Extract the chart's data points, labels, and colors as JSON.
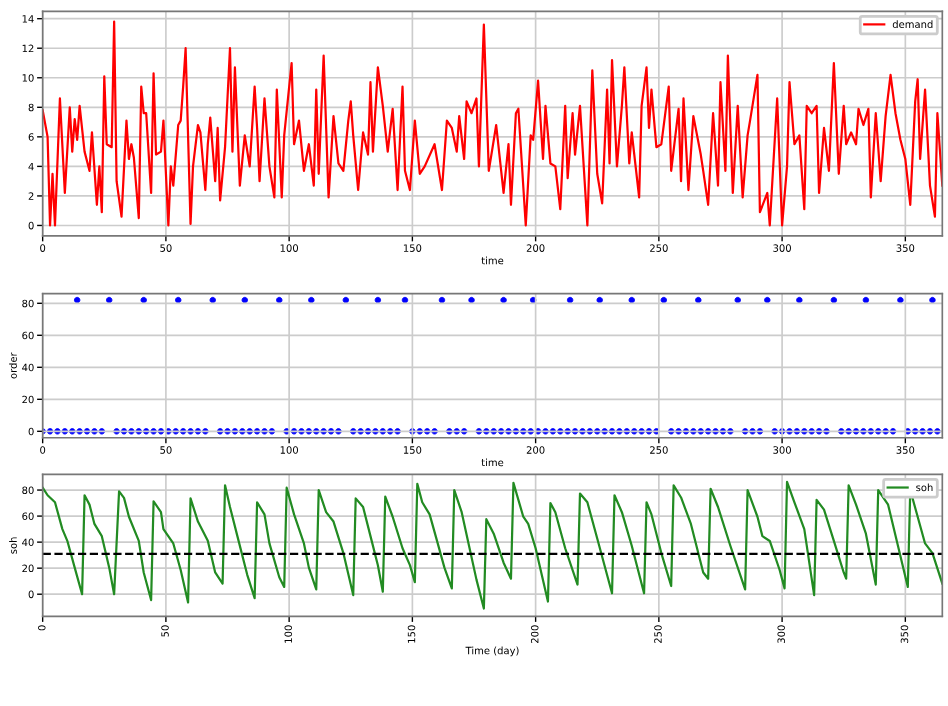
{
  "chart_data": [
    {
      "type": "line",
      "xlabel": "time",
      "xlim": [
        0,
        365
      ],
      "xticks": [
        0,
        50,
        100,
        150,
        200,
        250,
        300,
        350
      ],
      "ylim": [
        -0.7,
        14.5
      ],
      "yticks": [
        0,
        2,
        4,
        6,
        8,
        10,
        12,
        14
      ],
      "grid": true,
      "legend": "top right",
      "series": [
        {
          "name": "demand",
          "color": "#ff0000",
          "x": [
            0,
            2,
            3,
            4,
            5,
            7,
            9,
            11,
            12,
            13,
            14,
            15,
            17,
            19,
            20,
            22,
            23,
            24,
            25,
            26,
            28,
            29,
            30,
            32,
            34,
            35,
            36,
            37,
            39,
            40,
            41,
            42,
            44,
            45,
            46,
            48,
            49,
            51,
            52,
            53,
            55,
            56,
            57,
            58,
            60,
            61,
            63,
            64,
            66,
            67,
            68,
            70,
            71,
            72,
            74,
            76,
            77,
            78,
            80,
            82,
            84,
            86,
            87,
            88,
            90,
            92,
            94,
            95,
            97,
            98,
            101,
            102,
            104,
            106,
            108,
            110,
            111,
            112,
            114,
            116,
            118,
            120,
            122,
            124,
            125,
            126,
            128,
            130,
            132,
            133,
            134,
            136,
            138,
            140,
            142,
            144,
            146,
            147,
            149,
            151,
            153,
            155,
            159,
            162,
            164,
            166,
            168,
            169,
            171,
            172,
            174,
            176,
            177,
            179,
            181,
            184,
            187,
            189,
            190,
            192,
            193,
            196,
            198,
            199,
            201,
            203,
            204,
            206,
            208,
            210,
            212,
            213,
            215,
            216,
            218,
            221,
            223,
            225,
            227,
            229,
            230,
            231,
            233,
            235,
            236,
            238,
            239,
            242,
            243,
            245,
            246,
            247,
            249,
            251,
            254,
            255,
            258,
            259,
            260,
            262,
            264,
            267,
            268,
            270,
            272,
            274,
            275,
            277,
            278,
            280,
            282,
            284,
            286,
            287,
            290,
            291,
            294,
            295,
            298,
            300,
            302,
            303,
            305,
            307,
            309,
            310,
            312,
            314,
            315,
            317,
            319,
            321,
            323,
            325,
            326,
            328,
            330,
            331,
            333,
            335,
            336,
            338,
            340,
            342,
            344,
            346,
            348,
            350,
            352,
            354,
            355,
            356,
            358,
            360,
            362,
            363,
            365
          ],
          "values": [
            7.8,
            6,
            0,
            3.5,
            0,
            8.6,
            2.2,
            8,
            5,
            7.2,
            5.8,
            8.1,
            5,
            3.7,
            6.3,
            1.4,
            4,
            0.9,
            10.1,
            5.5,
            5.3,
            13.8,
            3,
            0.6,
            7.1,
            4.5,
            5.5,
            4.6,
            0.5,
            9.4,
            7.6,
            7.6,
            2.2,
            10.3,
            4.8,
            5,
            7.1,
            0,
            4,
            2.7,
            6.8,
            7.1,
            9.4,
            12,
            0.1,
            4,
            6.8,
            6.3,
            2.4,
            5.5,
            7.3,
            3,
            6.6,
            1.7,
            5.3,
            12,
            5,
            10.7,
            2.7,
            6.1,
            4,
            9.4,
            6.6,
            3,
            8.6,
            4,
            1.9,
            9.2,
            1.9,
            6.1,
            11,
            5.5,
            7.1,
            3.7,
            5.5,
            2.7,
            9.2,
            3.5,
            11.5,
            1.9,
            7.4,
            4.2,
            3.7,
            7.1,
            8.4,
            6.1,
            2.4,
            6.3,
            4.8,
            9.7,
            5,
            10.7,
            8.1,
            5,
            7.9,
            2.4,
            9.4,
            3.7,
            2.4,
            7.1,
            3.5,
            4,
            5.5,
            2.4,
            7.1,
            6.6,
            5,
            7.4,
            4.5,
            8.4,
            7.6,
            8.6,
            4,
            13.6,
            3.7,
            6.8,
            2.2,
            5.5,
            1.4,
            7.6,
            7.9,
            0,
            6.1,
            5.8,
            9.8,
            4.5,
            8.1,
            4.2,
            4,
            1.1,
            8.1,
            3.2,
            7.6,
            4.8,
            8.1,
            0,
            10.5,
            3.5,
            1.5,
            9.2,
            4.2,
            11.2,
            4,
            8.1,
            10.7,
            4.2,
            6.3,
            1.9,
            8.1,
            10.7,
            6.6,
            9.2,
            5.3,
            5.5,
            9.4,
            3.7,
            7.9,
            3,
            8.6,
            2.4,
            7.4,
            4.8,
            3.7,
            1.4,
            7.6,
            2.7,
            9.7,
            3.7,
            11.5,
            2.2,
            8.1,
            1.9,
            6.1,
            7.1,
            10.2,
            0.9,
            2.2,
            0,
            8.6,
            0,
            4,
            9.7,
            5.5,
            6.1,
            1.1,
            8.1,
            7.6,
            8.1,
            2.2,
            6.6,
            3.7,
            11,
            3.5,
            8.1,
            5.5,
            6.3,
            5.5,
            7.9,
            6.8,
            7.9,
            1.9,
            7.6,
            3,
            7.4,
            10.2,
            7.6,
            5.8,
            4.5,
            1.4,
            8.4,
            9.9,
            4.5,
            9.2,
            2.7,
            0.6,
            7.6,
            2.7
          ]
        }
      ]
    },
    {
      "type": "scatter",
      "xlabel": "time",
      "ylabel": "order",
      "xlim": [
        0,
        365
      ],
      "xticks": [
        0,
        50,
        100,
        150,
        200,
        250,
        300,
        350
      ],
      "ylim": [
        -4,
        86
      ],
      "yticks": [
        0,
        20,
        40,
        60,
        80
      ],
      "grid": true,
      "marker": "circle",
      "series": [
        {
          "color": "#0000ff",
          "x": [
            0,
            3,
            6,
            9,
            12,
            14,
            15,
            18,
            21,
            24,
            27,
            30,
            33,
            36,
            39,
            41,
            42,
            45,
            48,
            51,
            54,
            55,
            57,
            60,
            63,
            66,
            69,
            72,
            75,
            78,
            81,
            82,
            84,
            87,
            90,
            93,
            96,
            99,
            102,
            105,
            108,
            109,
            111,
            114,
            117,
            120,
            123,
            126,
            129,
            132,
            135,
            136,
            138,
            141,
            144,
            147,
            150,
            153,
            156,
            159,
            162,
            165,
            168,
            171,
            174,
            177,
            180,
            183,
            186,
            187,
            189,
            192,
            195,
            198,
            199,
            201,
            204,
            207,
            210,
            213,
            214,
            216,
            219,
            222,
            225,
            226,
            228,
            231,
            234,
            237,
            239,
            240,
            243,
            246,
            249,
            252,
            255,
            258,
            261,
            264,
            266,
            267,
            270,
            273,
            276,
            279,
            282,
            285,
            288,
            291,
            294,
            297,
            300,
            303,
            306,
            307,
            309,
            312,
            315,
            318,
            321,
            324,
            327,
            330,
            333,
            334,
            336,
            339,
            342,
            345,
            348,
            351,
            354,
            357,
            360,
            361,
            363
          ],
          "values": [
            0,
            0,
            0,
            0,
            0,
            82,
            0,
            0,
            0,
            0,
            82,
            0,
            0,
            0,
            0,
            82,
            0,
            0,
            0,
            0,
            0,
            82,
            0,
            0,
            0,
            0,
            82,
            0,
            0,
            0,
            0,
            82,
            0,
            0,
            0,
            0,
            82,
            0,
            0,
            0,
            0,
            82,
            0,
            0,
            0,
            0,
            82,
            0,
            0,
            0,
            0,
            82,
            0,
            0,
            0,
            82,
            0,
            0,
            0,
            0,
            82,
            0,
            0,
            0,
            82,
            0,
            0,
            0,
            0,
            82,
            0,
            0,
            0,
            0,
            82,
            0,
            0,
            0,
            0,
            0,
            82,
            0,
            0,
            0,
            0,
            82,
            0,
            0,
            0,
            0,
            82,
            0,
            0,
            0,
            0,
            82,
            0,
            0,
            0,
            0,
            82,
            0,
            0,
            0,
            0,
            0,
            82,
            0,
            0,
            0,
            82,
            0,
            0,
            0,
            0,
            82,
            0,
            0,
            0,
            0,
            82,
            0,
            0,
            0,
            0,
            82,
            0,
            0,
            0,
            0,
            82,
            0,
            0,
            0,
            0,
            82,
            0
          ]
        }
      ]
    },
    {
      "type": "line",
      "xlabel": "Time (day)",
      "ylabel": "soh",
      "xlim": [
        0,
        365
      ],
      "xticks": [
        0,
        50,
        100,
        150,
        200,
        250,
        300,
        350
      ],
      "ylim": [
        -17,
        92
      ],
      "yticks": [
        0,
        20,
        40,
        60,
        80
      ],
      "grid": true,
      "legend": "top right",
      "ref_lines": [
        {
          "axis": "y",
          "value": 31,
          "color": "#000000",
          "line_style": "dashed"
        }
      ],
      "series": [
        {
          "name": "soh",
          "color": "#228b22",
          "x": [
            0,
            2,
            5,
            8,
            10,
            13,
            16,
            17,
            19,
            21,
            24,
            27,
            29,
            31,
            33,
            35,
            39,
            41,
            44,
            45,
            48,
            49,
            53,
            56,
            59,
            60,
            63,
            67,
            70,
            73,
            74,
            76,
            79,
            83,
            86,
            87,
            90,
            92,
            96,
            98,
            99,
            102,
            106,
            108,
            111,
            112,
            115,
            118,
            122,
            126,
            127,
            130,
            133,
            136,
            138,
            139,
            142,
            146,
            149,
            151,
            152,
            154,
            157,
            160,
            163,
            166,
            167,
            170,
            173,
            176,
            179,
            180,
            183,
            187,
            190,
            191,
            195,
            197,
            200,
            205,
            206,
            208,
            212,
            217,
            218,
            221,
            225,
            231,
            232,
            235,
            239,
            244,
            245,
            247,
            251,
            255,
            256,
            259,
            263,
            268,
            270,
            271,
            274,
            279,
            285,
            286,
            290,
            292,
            295,
            299,
            301,
            302,
            305,
            309,
            313,
            314,
            317,
            321,
            325,
            326,
            327,
            330,
            334,
            338,
            339,
            343,
            347,
            351,
            352,
            355,
            358,
            361,
            365
          ],
          "values": [
            81.8,
            76,
            70.6,
            50,
            41,
            20.4,
            0,
            76,
            68.8,
            54,
            44.6,
            20.4,
            0,
            79,
            74,
            59.5,
            41,
            16.7,
            -4.5,
            71.4,
            63,
            50,
            39,
            18.6,
            -6.3,
            73.6,
            55.8,
            41,
            16.7,
            8.2,
            83.6,
            67,
            44.6,
            14.9,
            -3,
            70.6,
            61.3,
            39,
            13,
            5.6,
            81.8,
            61.3,
            39,
            20.4,
            3.7,
            80,
            63,
            55.8,
            31.6,
            -0.7,
            73.6,
            67,
            44.6,
            22.3,
            1.9,
            75,
            59.5,
            35.3,
            22.3,
            9.3,
            84.8,
            70.6,
            61.3,
            41,
            20.4,
            4.5,
            80,
            63,
            37,
            11.2,
            -11,
            57.6,
            46.5,
            24.2,
            11.9,
            85.5,
            59.5,
            54,
            35.3,
            -5.6,
            70,
            63,
            35.3,
            7.4,
            77.3,
            70.6,
            42.8,
            0.7,
            76,
            63,
            37.2,
            0.7,
            70.6,
            61.3,
            31.6,
            6.3,
            83.6,
            74.3,
            54,
            16.7,
            11.9,
            81,
            67,
            37.2,
            3.7,
            80,
            59.5,
            44.6,
            40.9,
            18.6,
            4.5,
            86.2,
            70.6,
            50,
            -0.7,
            72.5,
            65,
            41,
            16.7,
            11.9,
            83.6,
            68.8,
            46.5,
            7.4,
            80,
            68.8,
            37.2,
            5.6,
            80,
            59.5,
            39,
            31.6,
            8.2
          ]
        }
      ]
    }
  ]
}
